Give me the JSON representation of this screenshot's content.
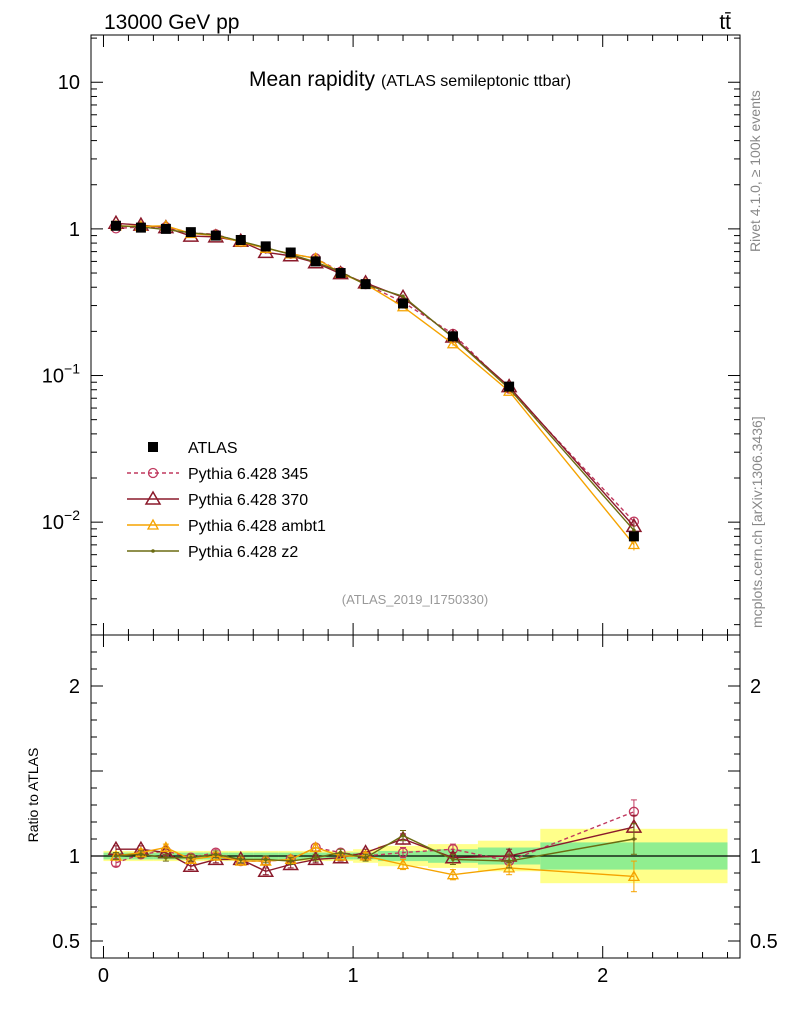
{
  "header": {
    "left": "13000 GeV pp",
    "right": "tt̄",
    "title_main": "Mean rapidity",
    "title_sub": "(ATLAS semileptonic ttbar)",
    "analysis_id": "(ATLAS_2019_I1750330)",
    "side_top": "Rivet 4.1.0, ≥ 100k events",
    "side_bottom": "mcplots.cern.ch [arXiv:1306.3436]"
  },
  "main_axis": {
    "ticks": [
      {
        "v": 0.01,
        "base": "10",
        "exp": "−2"
      },
      {
        "v": 0.1,
        "base": "10",
        "exp": "−1"
      },
      {
        "v": 1,
        "base": "1",
        "exp": ""
      },
      {
        "v": 10,
        "base": "10",
        "exp": ""
      }
    ],
    "ylim": [
      0.0017,
      21
    ]
  },
  "ratio_axis": {
    "ylabel": "Ratio to ATLAS",
    "ticks": [
      {
        "v": 0.5,
        "label": "0.5"
      },
      {
        "v": 1,
        "label": "1"
      },
      {
        "v": 2,
        "label": "2"
      }
    ],
    "ylim": [
      0.4,
      2.3
    ]
  },
  "x_axis": {
    "xlim": [
      -0.05,
      2.55
    ],
    "ticks": [
      {
        "v": 0,
        "label": "0"
      },
      {
        "v": 1,
        "label": "1"
      },
      {
        "v": 2,
        "label": "2"
      }
    ]
  },
  "colors": {
    "atlas": "#000000",
    "p345": "#c0395f",
    "p370": "#8b1a2b",
    "ambt1": "#f5a300",
    "z2": "#6b6b12",
    "band_inner": "#90ee90",
    "band_outer": "#ffff8a"
  },
  "chart_data": {
    "type": "scatter",
    "x": [
      0.05,
      0.15,
      0.25,
      0.35,
      0.45,
      0.55,
      0.65,
      0.75,
      0.85,
      0.95,
      1.05,
      1.2,
      1.4,
      1.625,
      2.125
    ],
    "x_edges": [
      0,
      0.1,
      0.2,
      0.3,
      0.4,
      0.5,
      0.6,
      0.7,
      0.8,
      0.9,
      1.0,
      1.1,
      1.3,
      1.5,
      1.75,
      2.5
    ],
    "data": {
      "name": "ATLAS",
      "values": [
        1.05,
        1.02,
        1.0,
        0.95,
        0.9,
        0.84,
        0.76,
        0.69,
        0.6,
        0.5,
        0.42,
        0.31,
        0.185,
        0.084,
        0.008
      ],
      "band_inner": [
        0.02,
        0.02,
        0.02,
        0.02,
        0.02,
        0.02,
        0.02,
        0.02,
        0.02,
        0.02,
        0.02,
        0.03,
        0.04,
        0.05,
        0.08
      ],
      "band_outer": [
        0.03,
        0.03,
        0.03,
        0.03,
        0.03,
        0.03,
        0.03,
        0.03,
        0.03,
        0.03,
        0.04,
        0.06,
        0.07,
        0.09,
        0.16
      ]
    },
    "series": [
      {
        "name": "Pythia 6.428 345",
        "style": "dash-circle",
        "ratio": [
          0.96,
          1.01,
          1.03,
          0.99,
          1.02,
          0.97,
          0.97,
          0.98,
          1.05,
          1.02,
          1.0,
          1.02,
          1.04,
          0.97,
          1.26
        ],
        "ratio_err": [
          0.02,
          0.02,
          0.02,
          0.02,
          0.02,
          0.02,
          0.02,
          0.02,
          0.02,
          0.02,
          0.02,
          0.03,
          0.03,
          0.04,
          0.07
        ]
      },
      {
        "name": "Pythia 6.428 370",
        "style": "solid-triangle",
        "ratio": [
          1.04,
          1.04,
          1.02,
          0.94,
          0.98,
          0.98,
          0.91,
          0.95,
          0.98,
          0.99,
          1.02,
          1.1,
          0.99,
          1.0,
          1.17
        ],
        "ratio_err": [
          0.02,
          0.02,
          0.02,
          0.02,
          0.02,
          0.02,
          0.02,
          0.02,
          0.02,
          0.02,
          0.02,
          0.03,
          0.03,
          0.04,
          0.07
        ]
      },
      {
        "name": "Pythia 6.428 ambt1",
        "style": "solid-small-triangle",
        "ratio": [
          1.0,
          1.02,
          1.05,
          0.98,
          1.0,
          0.97,
          0.97,
          0.98,
          1.05,
          1.0,
          1.0,
          0.95,
          0.89,
          0.93,
          0.88
        ],
        "ratio_err": [
          0.02,
          0.02,
          0.02,
          0.02,
          0.02,
          0.02,
          0.02,
          0.02,
          0.02,
          0.02,
          0.02,
          0.03,
          0.03,
          0.04,
          0.09
        ]
      },
      {
        "name": "Pythia 6.428 z2",
        "style": "solid-dot",
        "ratio": [
          1.0,
          1.01,
          0.99,
          0.99,
          1.01,
          0.98,
          0.98,
          0.97,
          0.99,
          1.02,
          0.99,
          1.12,
          0.98,
          0.97,
          1.1
        ],
        "ratio_err": [
          0.02,
          0.02,
          0.02,
          0.02,
          0.02,
          0.02,
          0.02,
          0.02,
          0.02,
          0.02,
          0.02,
          0.03,
          0.03,
          0.04,
          0.09
        ]
      }
    ]
  }
}
